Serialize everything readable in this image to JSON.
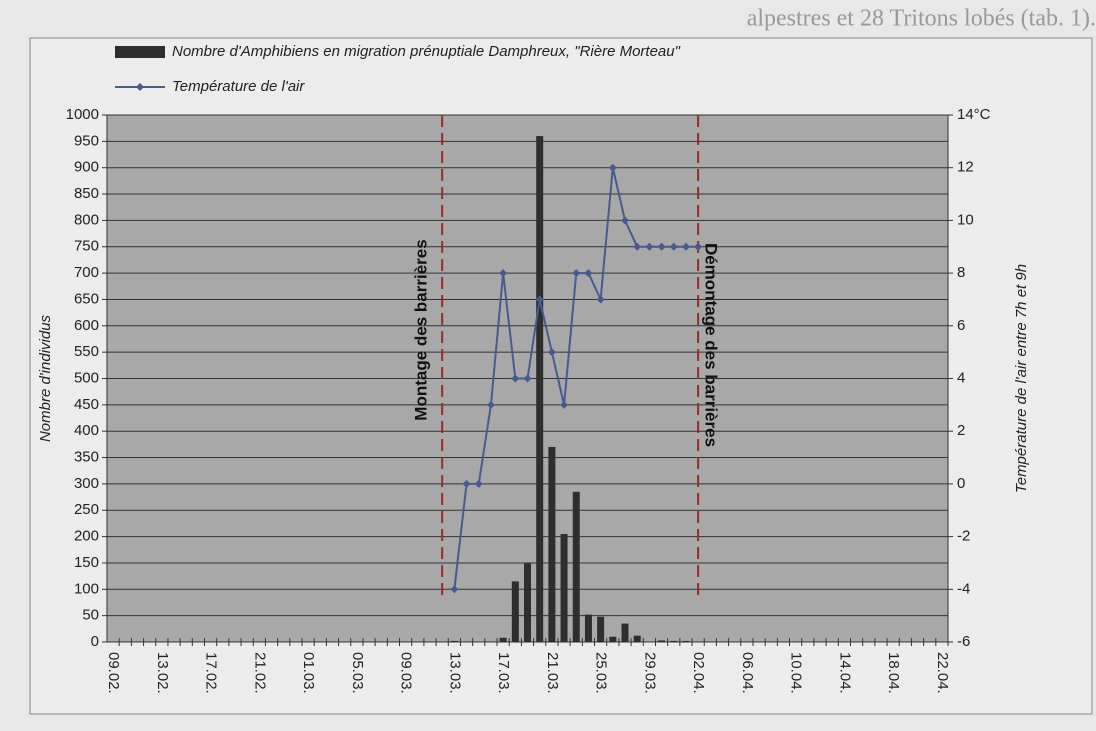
{
  "page_fragment": "alpestres et 28 Tritons lobés (tab. 1).",
  "chart_data": {
    "type": "bar-line",
    "categories": [
      "09.02.",
      null,
      null,
      null,
      "13.02.",
      null,
      null,
      null,
      "17.02.",
      null,
      null,
      null,
      "21.02.",
      null,
      null,
      null,
      "01.03.",
      null,
      null,
      null,
      "05.03.",
      null,
      null,
      null,
      "09.03.",
      null,
      null,
      null,
      "13.03.",
      null,
      null,
      null,
      "17.03.",
      null,
      null,
      null,
      "21.03.",
      null,
      null,
      null,
      "25.03.",
      null,
      null,
      null,
      "29.03.",
      null,
      null,
      null,
      "02.04.",
      null,
      null,
      null,
      "06.04.",
      null,
      null,
      null,
      "10.04.",
      null,
      null,
      null,
      "14.04.",
      null,
      null,
      null,
      "18.04.",
      null,
      null,
      null,
      "22.04."
    ],
    "series": [
      {
        "name": "Nombre d'Amphibiens en migration prénuptiale Damphreux, \"Rière Morteau\"",
        "type": "bar",
        "color": "#2e2e2e",
        "values": [
          null,
          null,
          null,
          null,
          null,
          null,
          null,
          null,
          null,
          null,
          null,
          null,
          null,
          null,
          null,
          null,
          null,
          null,
          null,
          null,
          null,
          null,
          null,
          null,
          null,
          null,
          null,
          null,
          2,
          0,
          0,
          0,
          8,
          115,
          150,
          960,
          370,
          205,
          285,
          52,
          48,
          10,
          35,
          12,
          0,
          3,
          2,
          2,
          null,
          null,
          null,
          null,
          null,
          null,
          null,
          null,
          null,
          null,
          null,
          null,
          null,
          null,
          null,
          null,
          null,
          null,
          null,
          null,
          null
        ]
      },
      {
        "name": "Température de l'air",
        "type": "line",
        "axis": "y2",
        "color": "#4b5a8e",
        "values": [
          null,
          null,
          null,
          null,
          null,
          null,
          null,
          null,
          null,
          null,
          null,
          null,
          null,
          null,
          null,
          null,
          null,
          null,
          null,
          null,
          null,
          null,
          null,
          null,
          null,
          null,
          null,
          null,
          -4,
          0,
          0,
          3,
          8,
          4,
          4,
          7,
          5,
          3,
          8,
          8,
          7,
          12,
          10,
          9,
          9,
          9,
          9,
          9,
          9,
          null,
          null,
          null,
          null,
          null,
          null,
          null,
          null,
          null,
          null,
          null,
          null,
          null,
          null,
          null,
          null,
          null,
          null,
          null,
          null
        ]
      }
    ],
    "ylabel": "Nombre d'individus",
    "y2label": "Température de l'air entre 7h et 9h",
    "ylim": [
      0,
      1000
    ],
    "yticks": [
      0,
      50,
      100,
      150,
      200,
      250,
      300,
      350,
      400,
      450,
      500,
      550,
      600,
      650,
      700,
      750,
      800,
      850,
      900,
      950,
      1000
    ],
    "y2lim": [
      -6,
      14
    ],
    "y2ticks": [
      -6,
      -4,
      -2,
      0,
      2,
      4,
      6,
      8,
      10,
      12,
      {
        "value": 14,
        "label": "14°C"
      }
    ],
    "annotations": [
      "Montage des barrières",
      "Démontage des barrières"
    ],
    "grid": true
  }
}
